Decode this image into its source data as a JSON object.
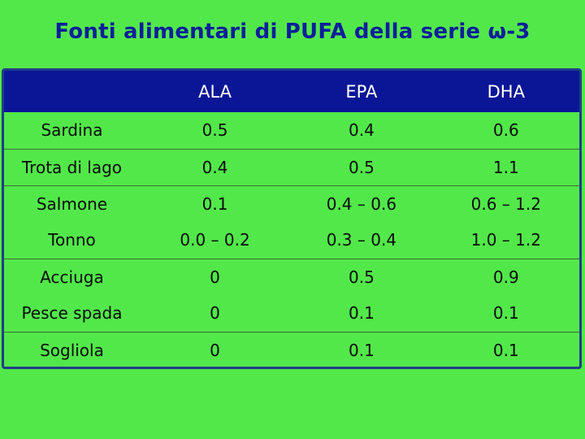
{
  "title": "Fonti alimentari di PUFA della serie ω-3",
  "table": {
    "headers": [
      "",
      "ALA",
      "EPA",
      "DHA"
    ],
    "rows": [
      {
        "food": "Sardina",
        "ala": "0.5",
        "epa": "0.4",
        "dha": "0.6"
      },
      {
        "food": "Trota di lago",
        "ala": "0.4",
        "epa": "0.5",
        "dha": "1.1"
      },
      {
        "food": "Salmone",
        "ala": "0.1",
        "epa": "0.4 – 0.6",
        "dha": "0.6 – 1.2"
      },
      {
        "food": "Tonno",
        "ala": "0.0 – 0.2",
        "epa": "0.3 – 0.4",
        "dha": "1.0 – 1.2"
      },
      {
        "food": "Acciuga",
        "ala": "0",
        "epa": "0.5",
        "dha": "0.9"
      },
      {
        "food": "Pesce spada",
        "ala": "0",
        "epa": "0.1",
        "dha": "0.1"
      },
      {
        "food": "Sogliola",
        "ala": "0",
        "epa": "0.1",
        "dha": "0.1"
      }
    ]
  },
  "colors": {
    "background": "#52e84a",
    "header_bg": "#0b1696",
    "title": "#0d1f9a",
    "frame": "#1f3d86"
  }
}
